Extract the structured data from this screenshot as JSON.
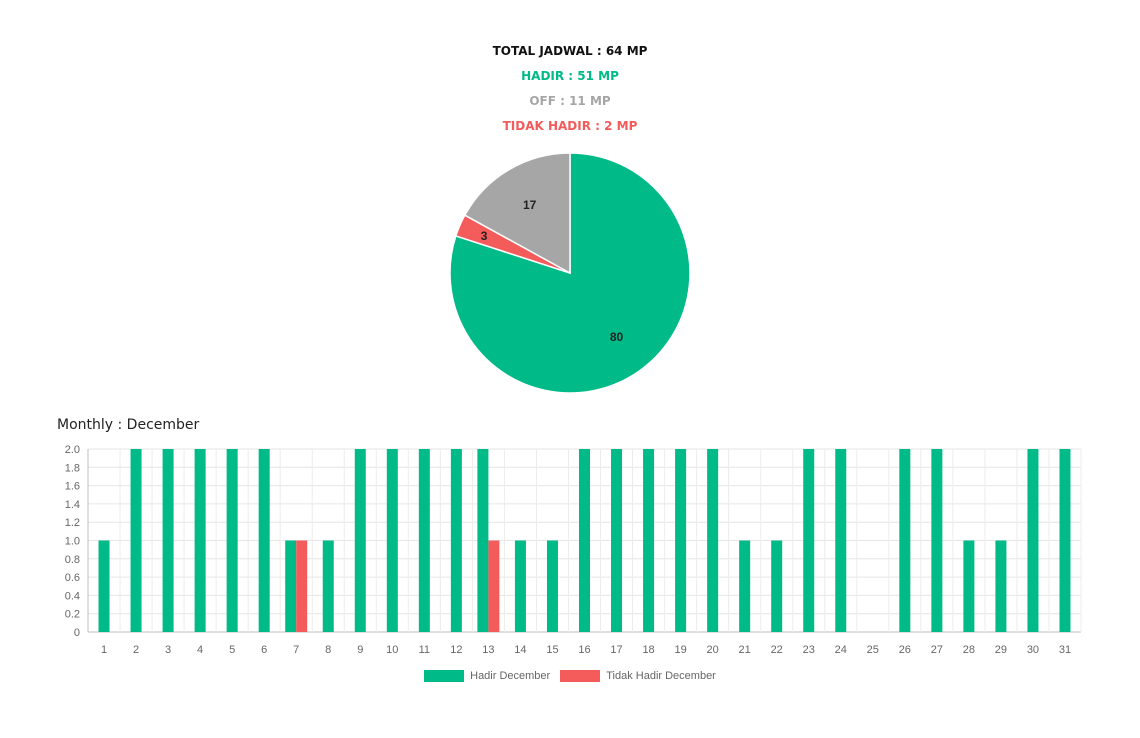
{
  "summary": {
    "total": "TOTAL JADWAL : 64 MP",
    "hadir": "HADIR : 51 MP",
    "off": "OFF : 11 MP",
    "tidak_hadir": "TIDAK HADIR : 2 MP"
  },
  "colors": {
    "hadir": "#00BA88",
    "off": "#A6A6A6",
    "tidak_hadir": "#F45B5B",
    "total": "#111111"
  },
  "monthly_title": "Monthly : December",
  "chart_data": [
    {
      "type": "pie",
      "slices": [
        {
          "key": "hadir",
          "label": "80",
          "value": 80,
          "color": "#00BA88"
        },
        {
          "key": "tidak_hadir",
          "label": "3",
          "value": 3,
          "color": "#F45B5B"
        },
        {
          "key": "off",
          "label": "17",
          "value": 17,
          "color": "#A6A6A6"
        }
      ]
    },
    {
      "type": "bar",
      "categories": [
        "1",
        "2",
        "3",
        "4",
        "5",
        "6",
        "7",
        "8",
        "9",
        "10",
        "11",
        "12",
        "13",
        "14",
        "15",
        "16",
        "17",
        "18",
        "19",
        "20",
        "21",
        "22",
        "23",
        "24",
        "25",
        "26",
        "27",
        "28",
        "29",
        "30",
        "31"
      ],
      "series": [
        {
          "name": "Hadir December",
          "color": "#00BA88",
          "values": [
            1,
            2,
            2,
            2,
            2,
            2,
            1,
            1,
            2,
            2,
            2,
            2,
            2,
            1,
            1,
            2,
            2,
            2,
            2,
            2,
            1,
            1,
            2,
            2,
            0,
            2,
            2,
            1,
            1,
            2,
            2
          ]
        },
        {
          "name": "Tidak Hadir December",
          "color": "#F45B5B",
          "values": [
            0,
            0,
            0,
            0,
            0,
            0,
            1,
            0,
            0,
            0,
            0,
            0,
            1,
            0,
            0,
            0,
            0,
            0,
            0,
            0,
            0,
            0,
            0,
            0,
            0,
            0,
            0,
            0,
            0,
            0,
            0
          ]
        }
      ],
      "ylim": [
        0,
        2
      ],
      "yticks": [
        "0",
        "0.2",
        "0.4",
        "0.6",
        "0.8",
        "1.0",
        "1.2",
        "1.4",
        "1.6",
        "1.8",
        "2.0"
      ],
      "grid": true,
      "legend": "bottom-center"
    }
  ]
}
